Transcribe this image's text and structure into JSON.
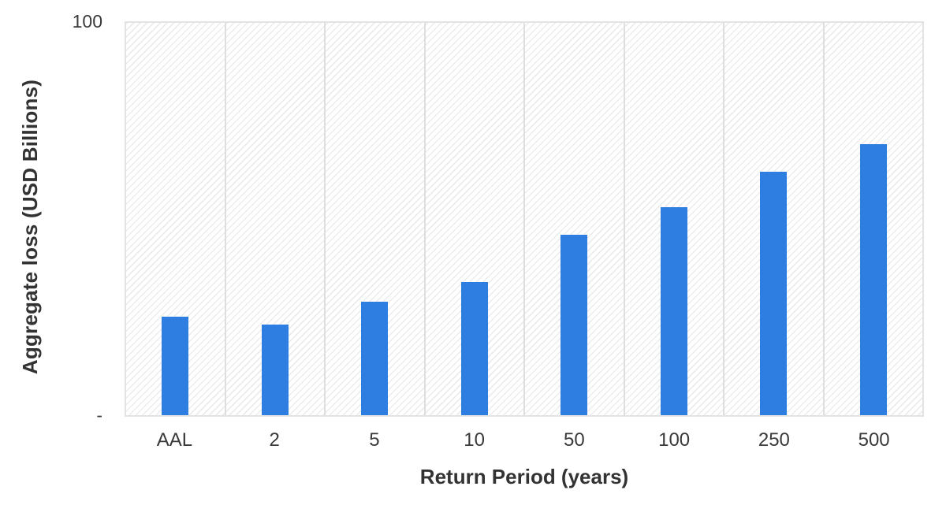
{
  "chart_data": {
    "type": "bar",
    "title": "",
    "xlabel": "Return Period (years)",
    "ylabel": "Aggregate loss (USD Billions)",
    "categories": [
      "AAL",
      "2",
      "5",
      "10",
      "50",
      "100",
      "250",
      "500"
    ],
    "values": [
      25,
      23,
      29,
      34,
      46,
      53,
      62,
      69
    ],
    "ylim": [
      0,
      100
    ],
    "y_ticks": {
      "top": "100",
      "bottom": "-"
    },
    "legend": "none",
    "grid": "vertical separators between categories",
    "plot_background": "white with light diagonal hatch",
    "colors": {
      "bar": "#2e7de0",
      "grid_line": "#dedede",
      "plot_border": "#e3e3e3",
      "hatch_line": "#ececec",
      "tick_text": "#3a3a3a",
      "title_text": "#333333"
    }
  }
}
